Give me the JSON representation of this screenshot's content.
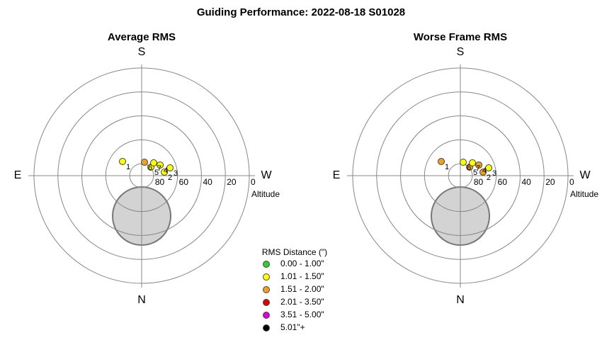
{
  "title": "Guiding Performance: 2022-08-18 S01028",
  "chart_data": [
    {
      "type": "polar",
      "title": "Average RMS",
      "directions": {
        "top": "S",
        "right": "W",
        "bottom": "N",
        "left": "E"
      },
      "rlim": [
        90,
        0
      ],
      "rticks": [
        80,
        60,
        40,
        20,
        0
      ],
      "r_label": "Altitude",
      "tick_color": "#800080",
      "points": [
        {
          "label": "1",
          "az": 126.6,
          "alt": 70.1,
          "color": "#ffff00"
        },
        {
          "label": "2",
          "az": 261.1,
          "alt": 70.8,
          "color": "#ffff00"
        },
        {
          "label": "3",
          "az": 254.6,
          "alt": 65.4,
          "color": "#ffff00"
        },
        {
          "label": "4",
          "az": 240.0,
          "alt": 72.2,
          "color": "#ffff00"
        },
        {
          "label": "5",
          "az": 227.3,
          "alt": 79.5,
          "color": "#ffff00"
        },
        {
          "label": "6",
          "az": 191.9,
          "alt": 78.5,
          "color": "#f0a020"
        },
        {
          "label": "7",
          "az": 223.3,
          "alt": 75.3,
          "color": "#ffff00"
        }
      ]
    },
    {
      "type": "polar",
      "title": "Worse Frame RMS",
      "directions": {
        "top": "S",
        "right": "W",
        "bottom": "N",
        "left": "E"
      },
      "rlim": [
        90,
        0
      ],
      "rticks": [
        80,
        60,
        40,
        20,
        0
      ],
      "r_label": "Altitude",
      "tick_color": "#800080",
      "points": [
        {
          "label": "1",
          "az": 126.6,
          "alt": 70.1,
          "color": "#f0a020"
        },
        {
          "label": "2",
          "az": 261.1,
          "alt": 70.8,
          "color": "#f0a020"
        },
        {
          "label": "3",
          "az": 254.6,
          "alt": 65.4,
          "color": "#ffff00"
        },
        {
          "label": "4",
          "az": 240.0,
          "alt": 72.2,
          "color": "#f0a020"
        },
        {
          "label": "5",
          "az": 227.3,
          "alt": 79.5,
          "color": "#f0a020"
        },
        {
          "label": "6",
          "az": 191.9,
          "alt": 78.5,
          "color": "#ffff00"
        },
        {
          "label": "7",
          "az": 223.3,
          "alt": 75.3,
          "color": "#ffff00"
        }
      ]
    }
  ],
  "legend": {
    "title": "RMS Distance (\")",
    "items": [
      {
        "label": "0.00 - 1.00\"",
        "color": "#33cc33"
      },
      {
        "label": "1.01 - 1.50\"",
        "color": "#ffff00"
      },
      {
        "label": "1.51 - 2.00\"",
        "color": "#f0a020"
      },
      {
        "label": "2.01 - 3.50\"",
        "color": "#dd0000"
      },
      {
        "label": "3.51 - 5.00\"",
        "color": "#dd00dd"
      },
      {
        "label": "5.01\"+",
        "color": "#000000"
      }
    ]
  }
}
